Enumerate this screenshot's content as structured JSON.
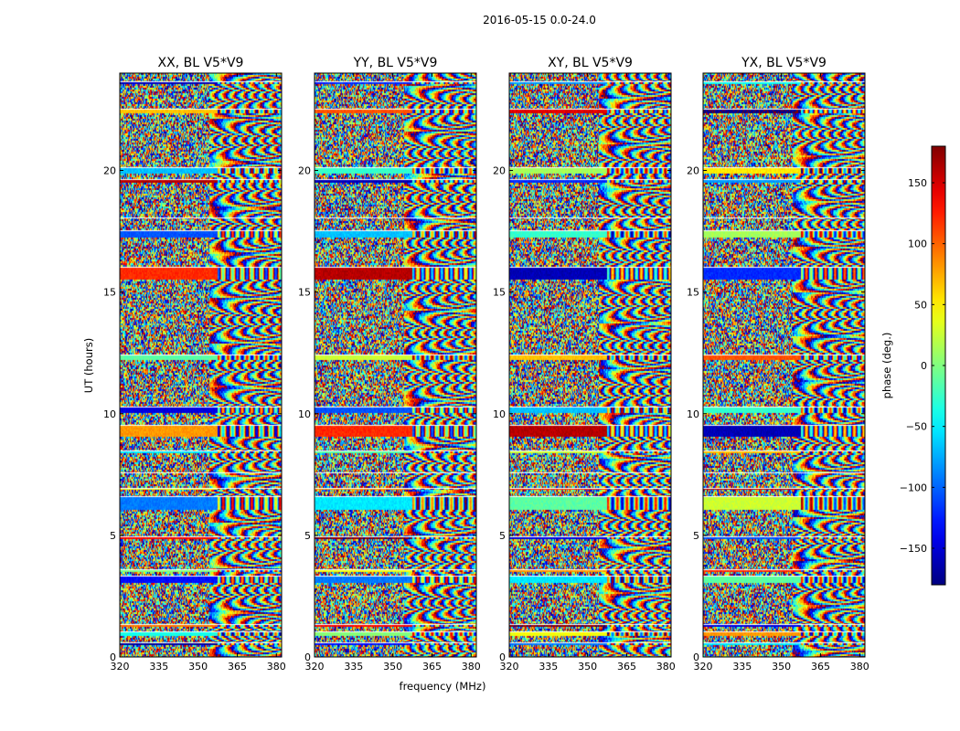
{
  "chart_data": {
    "type": "heatmap",
    "title": "2016-05-15 0.0-24.0",
    "xlabel": "frequency (MHz)",
    "ylabel": "UT (hours)",
    "xlim": [
      320,
      382
    ],
    "ylim": [
      0,
      24
    ],
    "xticks": [
      "320",
      "335",
      "350",
      "365",
      "380"
    ],
    "xtick_values": [
      320,
      335,
      350,
      365,
      380
    ],
    "yticks": [
      "0",
      "5",
      "10",
      "15",
      "20"
    ],
    "ytick_values": [
      0,
      5,
      10,
      15,
      20
    ],
    "panels": [
      {
        "title": "XX, BL V5*V9"
      },
      {
        "title": "YY, BL V5*V9"
      },
      {
        "title": "XY, BL V5*V9"
      },
      {
        "title": "YX, BL V5*V9"
      }
    ],
    "colorbar": {
      "label": "phase (deg.)",
      "range": [
        -180,
        180
      ],
      "ticks": [
        "150",
        "100",
        "50",
        "0",
        "−50",
        "−100",
        "−150"
      ],
      "tick_values": [
        150,
        100,
        50,
        0,
        -50,
        -100,
        -150
      ],
      "colormap": "jet"
    },
    "flagged_bands_hours": [
      [
        0.5,
        0.6
      ],
      [
        0.9,
        1.05
      ],
      [
        1.3,
        1.35
      ],
      [
        3.1,
        3.35
      ],
      [
        3.55,
        3.6
      ],
      [
        4.9,
        4.95
      ],
      [
        6.1,
        6.6
      ],
      [
        6.9,
        6.95
      ],
      [
        7.55,
        7.6
      ],
      [
        8.45,
        8.5
      ],
      [
        9.1,
        9.55
      ],
      [
        10.1,
        10.3
      ],
      [
        12.25,
        12.45
      ],
      [
        15.55,
        16.05
      ],
      [
        17.3,
        17.55
      ],
      [
        18.0,
        18.05
      ],
      [
        19.55,
        19.65
      ],
      [
        19.9,
        20.15
      ],
      [
        22.4,
        22.55
      ],
      [
        23.6,
        23.65
      ]
    ]
  }
}
